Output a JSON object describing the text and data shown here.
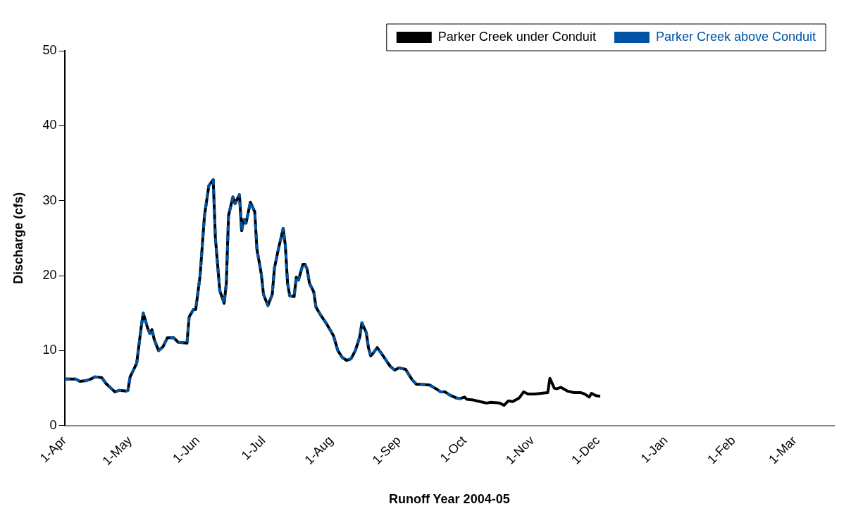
{
  "chart_data": {
    "type": "line",
    "xlabel": "Runoff Year 2004-05",
    "ylabel": "Discharge (cfs)",
    "x": [
      "2004-04-01",
      "2004-04-06",
      "2004-04-08",
      "2004-04-11",
      "2004-04-13",
      "2004-04-15",
      "2004-04-18",
      "2004-04-20",
      "2004-04-24",
      "2004-04-26",
      "2004-04-29",
      "2004-04-30",
      "2004-05-01",
      "2004-05-03",
      "2004-05-04",
      "2004-05-06",
      "2004-05-07",
      "2004-05-09",
      "2004-05-10",
      "2004-05-11",
      "2004-05-12",
      "2004-05-14",
      "2004-05-16",
      "2004-05-18",
      "2004-05-21",
      "2004-05-23",
      "2004-05-27",
      "2004-05-28",
      "2004-05-30",
      "2004-05-31",
      "2004-06-02",
      "2004-06-04",
      "2004-06-06",
      "2004-06-08",
      "2004-06-09",
      "2004-06-11",
      "2004-06-13",
      "2004-06-14",
      "2004-06-15",
      "2004-06-17",
      "2004-06-18",
      "2004-06-20",
      "2004-06-21",
      "2004-06-22",
      "2004-06-23",
      "2004-06-25",
      "2004-06-27",
      "2004-06-28",
      "2004-06-30",
      "2004-07-01",
      "2004-07-03",
      "2004-07-05",
      "2004-07-06",
      "2004-07-08",
      "2004-07-09",
      "2004-07-10",
      "2004-07-11",
      "2004-07-12",
      "2004-07-13",
      "2004-07-15",
      "2004-07-16",
      "2004-07-17",
      "2004-07-19",
      "2004-07-20",
      "2004-07-21",
      "2004-07-22",
      "2004-07-24",
      "2004-07-25",
      "2004-07-27",
      "2004-07-30",
      "2004-08-02",
      "2004-08-04",
      "2004-08-06",
      "2004-08-08",
      "2004-08-10",
      "2004-08-12",
      "2004-08-14",
      "2004-08-15",
      "2004-08-17",
      "2004-08-18",
      "2004-08-19",
      "2004-08-20",
      "2004-08-22",
      "2004-08-24",
      "2004-08-27",
      "2004-08-28",
      "2004-08-30",
      "2004-09-01",
      "2004-09-04",
      "2004-09-07",
      "2004-09-09",
      "2004-09-11",
      "2004-09-15",
      "2004-09-18",
      "2004-09-20",
      "2004-09-22",
      "2004-09-24",
      "2004-09-27",
      "2004-09-29",
      "2004-10-01",
      "2004-10-02",
      "2004-10-05",
      "2004-10-08",
      "2004-10-11",
      "2004-10-13",
      "2004-10-17",
      "2004-10-19",
      "2004-10-21",
      "2004-10-23",
      "2004-10-26",
      "2004-10-28",
      "2004-10-30",
      "2004-11-02",
      "2004-11-05",
      "2004-11-08",
      "2004-11-09",
      "2004-11-11",
      "2004-11-12",
      "2004-11-14",
      "2004-11-17",
      "2004-11-20",
      "2004-11-23",
      "2004-11-25",
      "2004-11-27",
      "2004-11-28",
      "2004-11-30",
      "2004-12-02"
    ],
    "series": [
      {
        "name": "Parker Creek under Conduit",
        "color": "#000000",
        "line_style": "solid",
        "values": [
          6.2,
          6.2,
          5.9,
          6.0,
          6.2,
          6.5,
          6.4,
          5.6,
          4.5,
          4.7,
          4.6,
          4.7,
          6.5,
          7.7,
          8.3,
          13,
          15,
          13,
          12.3,
          12.8,
          11.5,
          10.0,
          10.5,
          11.7,
          11.7,
          11.1,
          11.0,
          14.5,
          15.5,
          15.5,
          20,
          28,
          32,
          32.8,
          25,
          18,
          16.3,
          19,
          28,
          30.5,
          29.6,
          30.8,
          26,
          27.5,
          27,
          29.8,
          28.5,
          23.5,
          20.2,
          17.5,
          16,
          17.5,
          21,
          23.8,
          25,
          26.3,
          24,
          19,
          17.3,
          17.2,
          19.8,
          19.4,
          21.5,
          21.5,
          20.8,
          19,
          17.8,
          15.8,
          14.8,
          13.5,
          12,
          10,
          9.1,
          8.7,
          8.9,
          10,
          11.8,
          13.7,
          12.4,
          10.4,
          9.3,
          9.6,
          10.4,
          9.6,
          8.3,
          7.9,
          7.4,
          7.7,
          7.5,
          6.1,
          5.5,
          5.5,
          5.4,
          4.9,
          4.5,
          4.5,
          4.1,
          3.7,
          3.6,
          3.8,
          3.5,
          3.4,
          3.2,
          3.0,
          3.1,
          3.0,
          2.7,
          3.3,
          3.2,
          3.7,
          4.5,
          4.2,
          4.2,
          4.3,
          4.4,
          6.3,
          5.0,
          4.9,
          5.1,
          4.6,
          4.4,
          4.4,
          4.2,
          3.8,
          4.3,
          4.0,
          3.9
        ]
      },
      {
        "name": "Parker Creek above Conduit",
        "color": "#0054a6",
        "line_style": "dashed",
        "values": [
          6.2,
          6.2,
          5.9,
          6.0,
          6.2,
          6.5,
          6.4,
          5.6,
          4.5,
          4.7,
          4.6,
          4.7,
          6.5,
          7.7,
          8.3,
          13,
          15,
          13,
          12.3,
          12.8,
          11.5,
          10.0,
          10.5,
          11.7,
          11.7,
          11.1,
          11.0,
          14.5,
          15.5,
          15.5,
          20,
          28,
          32,
          32.8,
          25,
          18,
          16.3,
          19,
          28,
          30.5,
          29.6,
          30.8,
          26,
          27.5,
          27,
          29.8,
          28.5,
          23.5,
          20.2,
          17.5,
          16,
          17.5,
          21,
          23.8,
          25,
          26.3,
          24,
          19,
          17.3,
          17.2,
          19.8,
          19.4,
          21.5,
          21.5,
          20.8,
          19,
          17.8,
          15.8,
          14.8,
          13.5,
          12,
          10,
          9.1,
          8.7,
          8.9,
          10,
          11.8,
          13.7,
          12.4,
          10.4,
          9.3,
          9.6,
          10.4,
          9.6,
          8.3,
          7.9,
          7.4,
          7.7,
          7.5,
          6.1,
          5.5,
          5.5,
          5.4,
          4.9,
          4.5,
          4.5,
          4.1,
          3.7,
          3.6,
          3.8,
          null,
          null,
          null,
          null,
          null,
          null,
          null,
          null,
          null,
          null,
          null,
          null,
          null,
          null,
          null,
          null,
          null,
          null,
          null,
          null,
          null,
          null,
          null,
          null,
          null,
          null,
          null
        ]
      }
    ],
    "xlim": [
      "2004-04-01",
      "2005-03-19"
    ],
    "xticks": [
      {
        "value": "2004-04-01",
        "label": "1-Apr"
      },
      {
        "value": "2004-05-01",
        "label": "1-May"
      },
      {
        "value": "2004-06-01",
        "label": "1-Jun"
      },
      {
        "value": "2004-07-01",
        "label": "1-Jul"
      },
      {
        "value": "2004-08-01",
        "label": "1-Aug"
      },
      {
        "value": "2004-09-01",
        "label": "1-Sep"
      },
      {
        "value": "2004-10-01",
        "label": "1-Oct"
      },
      {
        "value": "2004-11-01",
        "label": "1-Nov"
      },
      {
        "value": "2004-12-01",
        "label": "1-Dec"
      },
      {
        "value": "2005-01-01",
        "label": "1-Jan"
      },
      {
        "value": "2005-02-01",
        "label": "1-Feb"
      },
      {
        "value": "2005-03-01",
        "label": "1-Mar"
      }
    ],
    "ylim": [
      0,
      50
    ],
    "yticks": [
      0,
      10,
      20,
      30,
      40,
      50
    ],
    "grid": false,
    "legend": "top right",
    "marker": "none"
  }
}
